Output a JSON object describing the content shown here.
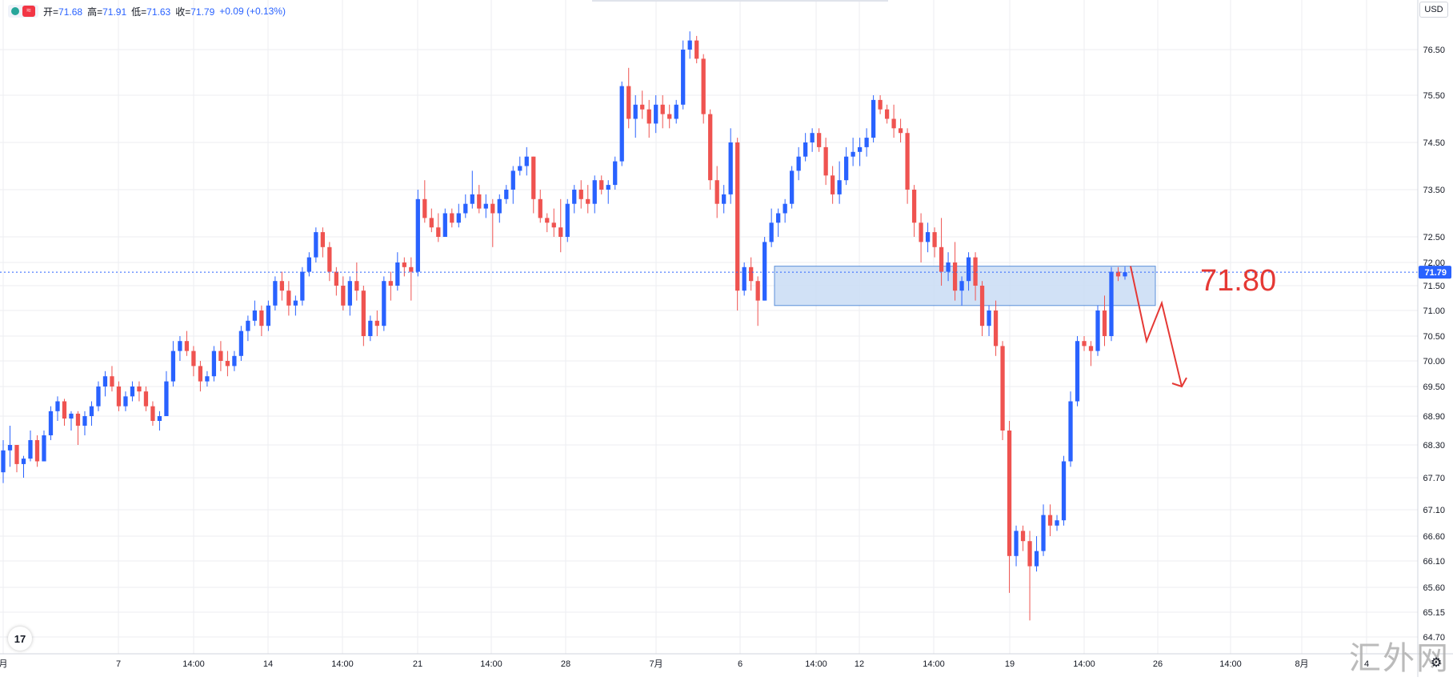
{
  "ohlc": {
    "open_label": "开",
    "open": "71.68",
    "high_label": "高",
    "high": "71.91",
    "low_label": "低",
    "low": "71.63",
    "close_label": "收",
    "close": "71.79",
    "change": "+0.09 (+0.13%)",
    "indicator_icon": "≈"
  },
  "currency_button": "USD",
  "watermark": "汇外网",
  "logo_text": "17",
  "colors": {
    "up": "#2962ff",
    "down": "#ef5350",
    "grid": "#ecedf2",
    "zone_fill": "#c9dcf5",
    "zone_stroke": "#5b8fd9",
    "annotation": "#e53935",
    "price_tag": "#2962ff"
  },
  "chart_data": {
    "type": "candlestick",
    "y_ticks": [
      "76.50",
      "75.50",
      "74.50",
      "73.50",
      "72.50",
      "72.00",
      "71.50",
      "71.00",
      "70.50",
      "70.00",
      "69.50",
      "68.90",
      "68.30",
      "67.70",
      "67.10",
      "66.60",
      "66.10",
      "65.60",
      "65.15",
      "64.70"
    ],
    "x_ticks": [
      "月",
      "7",
      "14:00",
      "14",
      "14:00",
      "21",
      "14:00",
      "28",
      "7月",
      "6",
      "14:00",
      "12",
      "14:00",
      "19",
      "14:00",
      "26",
      "14:00",
      "8月",
      "4"
    ],
    "ylim": [
      64.5,
      77.6
    ],
    "last_price": "71.79",
    "zone": {
      "low": 71.1,
      "high": 71.92
    },
    "annotation_label": "71.80",
    "projection": [
      71.92,
      70.4,
      71.15,
      69.5
    ],
    "candles": [
      [
        67.8,
        68.4,
        67.6,
        68.2
      ],
      [
        68.2,
        68.7,
        67.9,
        68.3
      ],
      [
        68.3,
        68.3,
        67.8,
        67.95
      ],
      [
        67.95,
        68.1,
        67.7,
        68.05
      ],
      [
        68.05,
        68.6,
        68.0,
        68.4
      ],
      [
        68.4,
        68.5,
        67.9,
        68.0
      ],
      [
        68.0,
        68.6,
        68.0,
        68.5
      ],
      [
        68.5,
        69.1,
        68.4,
        69.0
      ],
      [
        69.0,
        69.3,
        68.8,
        69.2
      ],
      [
        69.2,
        69.25,
        68.7,
        68.85
      ],
      [
        68.85,
        69.0,
        68.6,
        68.95
      ],
      [
        68.95,
        69.0,
        68.3,
        68.7
      ],
      [
        68.7,
        69.0,
        68.5,
        68.9
      ],
      [
        68.9,
        69.2,
        68.7,
        69.1
      ],
      [
        69.1,
        69.6,
        69.0,
        69.5
      ],
      [
        69.5,
        69.8,
        69.3,
        69.7
      ],
      [
        69.7,
        69.9,
        69.4,
        69.5
      ],
      [
        69.5,
        69.6,
        69.0,
        69.1
      ],
      [
        69.1,
        69.4,
        69.0,
        69.3
      ],
      [
        69.3,
        69.6,
        69.2,
        69.5
      ],
      [
        69.5,
        69.6,
        69.2,
        69.4
      ],
      [
        69.4,
        69.5,
        69.0,
        69.1
      ],
      [
        69.1,
        69.2,
        68.7,
        68.8
      ],
      [
        68.8,
        69.0,
        68.6,
        68.9
      ],
      [
        68.9,
        69.8,
        68.9,
        69.6
      ],
      [
        69.6,
        70.4,
        69.5,
        70.2
      ],
      [
        70.2,
        70.5,
        70.0,
        70.4
      ],
      [
        70.4,
        70.6,
        70.1,
        70.2
      ],
      [
        70.2,
        70.3,
        69.7,
        69.9
      ],
      [
        69.9,
        70.0,
        69.4,
        69.6
      ],
      [
        69.6,
        69.8,
        69.5,
        69.7
      ],
      [
        69.7,
        70.3,
        69.6,
        70.2
      ],
      [
        70.2,
        70.4,
        69.8,
        70.0
      ],
      [
        70.0,
        70.2,
        69.7,
        69.9
      ],
      [
        69.9,
        70.2,
        69.8,
        70.1
      ],
      [
        70.1,
        70.7,
        70.0,
        70.6
      ],
      [
        70.6,
        70.9,
        70.4,
        70.8
      ],
      [
        70.8,
        71.2,
        70.7,
        71.0
      ],
      [
        71.0,
        71.1,
        70.5,
        70.7
      ],
      [
        70.7,
        71.2,
        70.6,
        71.1
      ],
      [
        71.1,
        71.7,
        71.0,
        71.6
      ],
      [
        71.6,
        71.8,
        71.2,
        71.4
      ],
      [
        71.4,
        71.6,
        70.9,
        71.1
      ],
      [
        71.1,
        71.3,
        70.9,
        71.2
      ],
      [
        71.2,
        71.9,
        71.1,
        71.8
      ],
      [
        71.8,
        72.2,
        71.7,
        72.1
      ],
      [
        72.1,
        72.7,
        72.0,
        72.6
      ],
      [
        72.6,
        72.7,
        72.1,
        72.3
      ],
      [
        72.3,
        72.4,
        71.6,
        71.8
      ],
      [
        71.8,
        71.9,
        71.3,
        71.5
      ],
      [
        71.5,
        71.7,
        71.0,
        71.1
      ],
      [
        71.1,
        71.7,
        70.9,
        71.6
      ],
      [
        71.6,
        72.0,
        71.2,
        71.4
      ],
      [
        71.4,
        71.5,
        70.3,
        70.5
      ],
      [
        70.5,
        70.9,
        70.4,
        70.8
      ],
      [
        70.8,
        71.0,
        70.5,
        70.7
      ],
      [
        70.7,
        71.7,
        70.6,
        71.6
      ],
      [
        71.6,
        71.8,
        71.2,
        71.5
      ],
      [
        71.5,
        72.2,
        71.4,
        72.0
      ],
      [
        72.0,
        72.1,
        71.7,
        71.9
      ],
      [
        71.9,
        72.1,
        71.2,
        71.8
      ],
      [
        71.8,
        73.5,
        71.7,
        73.3
      ],
      [
        73.3,
        73.7,
        72.8,
        72.9
      ],
      [
        72.9,
        73.1,
        72.6,
        72.7
      ],
      [
        72.7,
        73.0,
        72.4,
        72.5
      ],
      [
        72.5,
        73.1,
        72.5,
        73.0
      ],
      [
        73.0,
        73.1,
        72.7,
        72.8
      ],
      [
        72.8,
        73.2,
        72.7,
        73.0
      ],
      [
        73.0,
        73.4,
        72.9,
        73.2
      ],
      [
        73.2,
        73.9,
        73.1,
        73.4
      ],
      [
        73.4,
        73.6,
        73.0,
        73.1
      ],
      [
        73.1,
        73.4,
        72.9,
        73.2
      ],
      [
        73.2,
        73.3,
        72.3,
        73.0
      ],
      [
        73.0,
        73.4,
        72.8,
        73.3
      ],
      [
        73.3,
        73.6,
        73.2,
        73.5
      ],
      [
        73.5,
        74.0,
        73.2,
        73.9
      ],
      [
        73.9,
        74.2,
        73.8,
        74.0
      ],
      [
        74.0,
        74.4,
        73.8,
        74.2
      ],
      [
        74.2,
        74.2,
        73.0,
        73.3
      ],
      [
        73.3,
        73.5,
        72.8,
        72.9
      ],
      [
        72.9,
        73.0,
        72.6,
        72.8
      ],
      [
        72.8,
        73.1,
        72.5,
        72.7
      ],
      [
        72.7,
        73.3,
        72.2,
        72.5
      ],
      [
        72.5,
        73.3,
        72.4,
        73.2
      ],
      [
        73.2,
        73.6,
        73.0,
        73.5
      ],
      [
        73.5,
        73.7,
        73.1,
        73.3
      ],
      [
        73.3,
        73.6,
        73.0,
        73.2
      ],
      [
        73.2,
        73.8,
        73.0,
        73.7
      ],
      [
        73.7,
        73.8,
        73.4,
        73.5
      ],
      [
        73.5,
        73.7,
        73.2,
        73.6
      ],
      [
        73.6,
        74.2,
        73.5,
        74.1
      ],
      [
        74.1,
        75.8,
        74.0,
        75.7
      ],
      [
        75.7,
        76.1,
        74.8,
        75.0
      ],
      [
        75.0,
        75.5,
        74.6,
        75.3
      ],
      [
        75.3,
        75.6,
        75.0,
        75.2
      ],
      [
        75.2,
        75.4,
        74.6,
        74.9
      ],
      [
        74.9,
        75.5,
        74.7,
        75.3
      ],
      [
        75.3,
        75.5,
        74.8,
        75.1
      ],
      [
        75.1,
        75.3,
        74.8,
        75.0
      ],
      [
        75.0,
        75.4,
        74.9,
        75.3
      ],
      [
        75.3,
        76.7,
        75.2,
        76.5
      ],
      [
        76.5,
        76.9,
        76.3,
        76.7
      ],
      [
        76.7,
        76.8,
        76.2,
        76.3
      ],
      [
        76.3,
        76.4,
        74.9,
        75.1
      ],
      [
        75.1,
        75.2,
        73.5,
        73.7
      ],
      [
        73.7,
        74.0,
        72.9,
        73.2
      ],
      [
        73.2,
        73.6,
        73.0,
        73.4
      ],
      [
        73.4,
        74.8,
        73.2,
        74.5
      ],
      [
        74.5,
        74.6,
        71.0,
        71.4
      ],
      [
        71.4,
        72.0,
        71.3,
        71.9
      ],
      [
        71.9,
        72.1,
        71.4,
        71.6
      ],
      [
        71.6,
        71.7,
        70.7,
        71.2
      ],
      [
        71.2,
        72.5,
        71.2,
        72.4
      ],
      [
        72.4,
        73.1,
        72.3,
        72.8
      ],
      [
        72.8,
        73.1,
        72.5,
        73.0
      ],
      [
        73.0,
        73.3,
        72.8,
        73.2
      ],
      [
        73.2,
        74.0,
        73.1,
        73.9
      ],
      [
        73.9,
        74.4,
        73.7,
        74.2
      ],
      [
        74.2,
        74.7,
        74.1,
        74.5
      ],
      [
        74.5,
        74.8,
        74.3,
        74.7
      ],
      [
        74.7,
        74.8,
        74.3,
        74.4
      ],
      [
        74.4,
        74.6,
        73.6,
        73.8
      ],
      [
        73.8,
        74.0,
        73.2,
        73.4
      ],
      [
        73.4,
        74.1,
        73.2,
        73.7
      ],
      [
        73.7,
        74.4,
        73.6,
        74.2
      ],
      [
        74.2,
        74.6,
        74.0,
        74.3
      ],
      [
        74.3,
        74.6,
        74.0,
        74.4
      ],
      [
        74.4,
        74.8,
        74.2,
        74.6
      ],
      [
        74.6,
        75.5,
        74.5,
        75.4
      ],
      [
        75.4,
        75.5,
        75.1,
        75.2
      ],
      [
        75.2,
        75.3,
        74.9,
        75.0
      ],
      [
        75.0,
        75.3,
        74.6,
        74.8
      ],
      [
        74.8,
        75.0,
        74.5,
        74.7
      ],
      [
        74.7,
        74.8,
        73.2,
        73.5
      ],
      [
        73.5,
        73.6,
        72.5,
        72.8
      ],
      [
        72.8,
        73.0,
        72.0,
        72.4
      ],
      [
        72.4,
        72.8,
        72.2,
        72.6
      ],
      [
        72.6,
        72.7,
        72.1,
        72.3
      ],
      [
        72.3,
        72.9,
        71.5,
        71.8
      ],
      [
        71.8,
        72.2,
        71.6,
        72.0
      ],
      [
        72.0,
        72.4,
        71.2,
        71.4
      ],
      [
        71.4,
        71.7,
        71.1,
        71.6
      ],
      [
        71.6,
        72.2,
        71.4,
        72.1
      ],
      [
        72.1,
        72.2,
        71.2,
        71.5
      ],
      [
        71.5,
        71.6,
        70.5,
        70.7
      ],
      [
        70.7,
        71.1,
        70.5,
        71.0
      ],
      [
        71.0,
        71.2,
        70.1,
        70.3
      ],
      [
        70.3,
        70.4,
        68.4,
        68.6
      ],
      [
        68.6,
        68.8,
        65.5,
        66.2
      ],
      [
        66.2,
        66.8,
        66.0,
        66.7
      ],
      [
        66.7,
        66.8,
        66.3,
        66.5
      ],
      [
        66.5,
        66.7,
        65.0,
        66.0
      ],
      [
        66.0,
        66.6,
        65.9,
        66.3
      ],
      [
        66.3,
        67.2,
        66.2,
        67.0
      ],
      [
        67.0,
        67.2,
        66.6,
        66.8
      ],
      [
        66.8,
        67.0,
        66.7,
        66.9
      ],
      [
        66.9,
        68.1,
        66.8,
        68.0
      ],
      [
        68.0,
        69.4,
        67.9,
        69.2
      ],
      [
        69.2,
        70.5,
        69.1,
        70.4
      ],
      [
        70.4,
        70.5,
        70.2,
        70.3
      ],
      [
        70.3,
        70.4,
        69.9,
        70.2
      ],
      [
        70.2,
        71.1,
        70.1,
        71.0
      ],
      [
        71.0,
        71.3,
        70.3,
        70.5
      ],
      [
        70.5,
        71.9,
        70.4,
        71.8
      ],
      [
        71.8,
        71.9,
        71.6,
        71.7
      ],
      [
        71.7,
        71.91,
        71.63,
        71.79
      ]
    ]
  }
}
